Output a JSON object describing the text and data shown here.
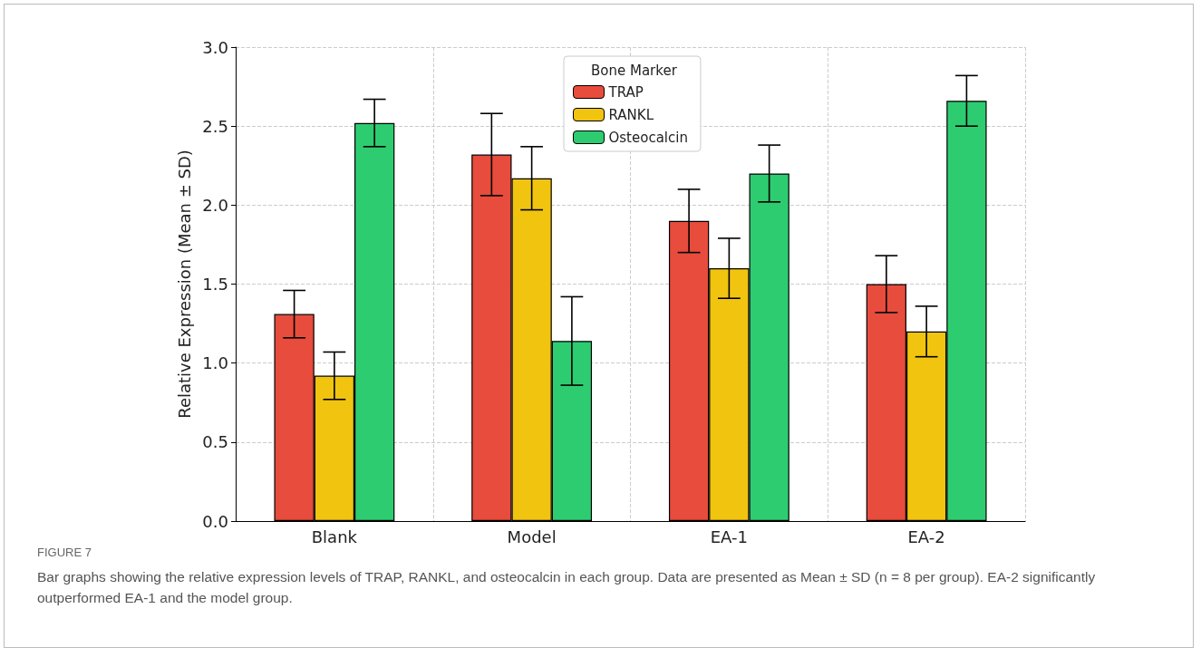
{
  "chart_data": {
    "type": "bar",
    "ylabel": "Relative Expression (Mean ± SD)",
    "legend_title": "Bone Marker",
    "categories": [
      "Blank",
      "Model",
      "EA-1",
      "EA-2"
    ],
    "series": [
      {
        "name": "TRAP",
        "color": "#e74c3c",
        "values": [
          1.31,
          2.32,
          1.9,
          1.5
        ],
        "errors": [
          0.15,
          0.26,
          0.2,
          0.18
        ]
      },
      {
        "name": "RANKL",
        "color": "#f1c40f",
        "values": [
          0.92,
          2.17,
          1.6,
          1.2
        ],
        "errors": [
          0.15,
          0.2,
          0.19,
          0.16
        ]
      },
      {
        "name": "Osteocalcin",
        "color": "#2ecc71",
        "values": [
          2.52,
          1.14,
          2.2,
          2.66
        ],
        "errors": [
          0.15,
          0.28,
          0.18,
          0.16
        ]
      }
    ],
    "ylim": [
      0,
      3
    ],
    "yticks": [
      {
        "value": 0,
        "label": "0.0"
      },
      {
        "value": 0.5,
        "label": "0.5"
      },
      {
        "value": 1,
        "label": "1.0"
      },
      {
        "value": 1.5,
        "label": "1.5"
      },
      {
        "value": 2,
        "label": "2.0"
      },
      {
        "value": 2.5,
        "label": "2.5"
      },
      {
        "value": 3,
        "label": "3.0"
      }
    ],
    "grid": true,
    "legend": "top",
    "annotations": [
      "FIGURE 7",
      "Bar graphs showing the relative expression levels of TRAP, RANKL, and osteocalcin in each group. Data are presented as Mean ± SD (n = 8 per group). EA-2 significantly outperformed EA-1 and the model group."
    ]
  }
}
